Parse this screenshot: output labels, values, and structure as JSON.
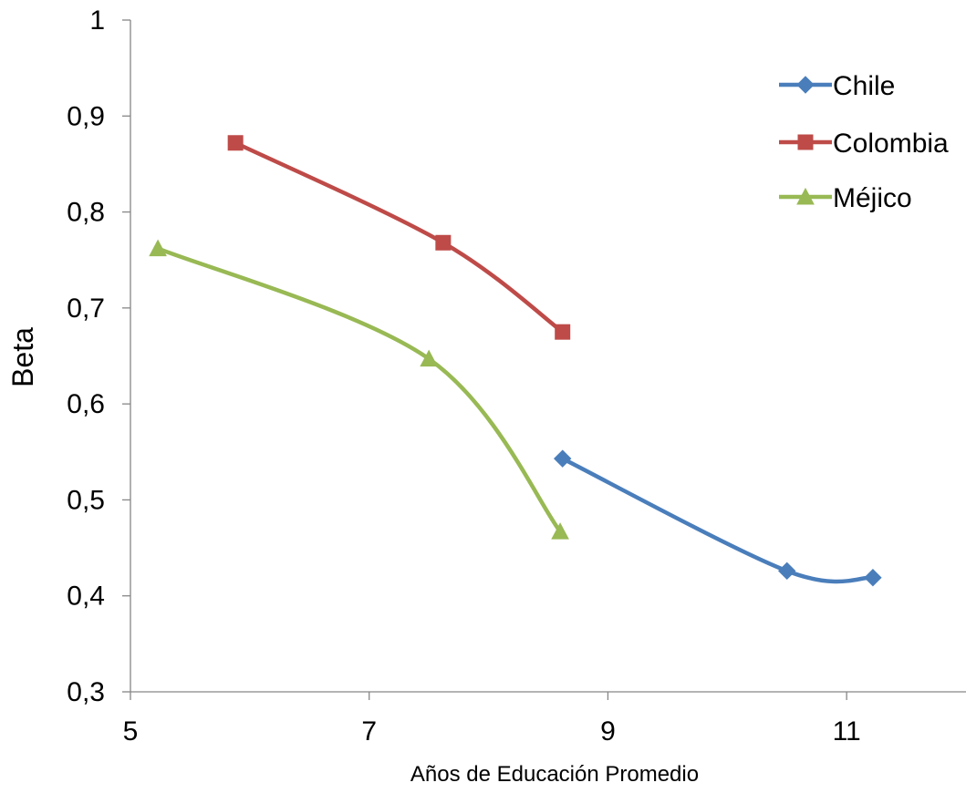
{
  "chart_data": {
    "type": "line",
    "title": "",
    "xlabel": "Años de Educación Promedio",
    "ylabel": "Beta",
    "xlim": [
      5,
      12.0
    ],
    "ylim": [
      0.3,
      1
    ],
    "xticks": [
      5,
      7,
      9,
      11
    ],
    "xtick_labels": [
      "5",
      "7",
      "9",
      "11"
    ],
    "yticks": [
      0.3,
      0.4,
      0.5,
      0.6,
      0.7,
      0.8,
      0.9,
      1
    ],
    "ytick_labels": [
      "0,3",
      "0,4",
      "0,5",
      "0,6",
      "0,7",
      "0,8",
      "0,9",
      "1"
    ],
    "grid": false,
    "smooth": true,
    "legend_position": "top-right",
    "series": [
      {
        "name": "Chile",
        "color": "#4a7ebb",
        "marker": "diamond",
        "points": [
          [
            8.62,
            0.543
          ],
          [
            10.5,
            0.426
          ],
          [
            11.22,
            0.419
          ]
        ]
      },
      {
        "name": "Colombia",
        "color": "#be4b48",
        "marker": "square",
        "points": [
          [
            5.88,
            0.872
          ],
          [
            7.62,
            0.768
          ],
          [
            8.62,
            0.675
          ]
        ]
      },
      {
        "name": "Méjico",
        "color": "#98b954",
        "marker": "triangle",
        "points": [
          [
            5.23,
            0.762
          ],
          [
            7.5,
            0.647
          ],
          [
            8.6,
            0.467
          ]
        ]
      }
    ]
  }
}
